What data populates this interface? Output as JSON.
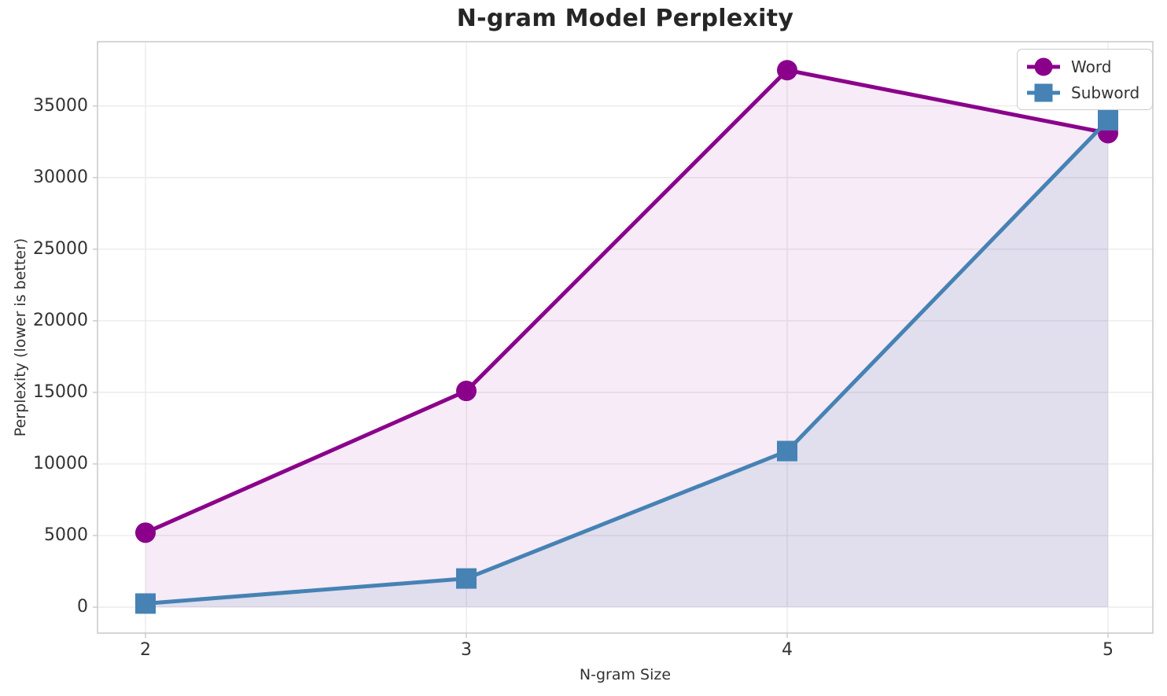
{
  "chart_data": {
    "type": "line",
    "title": "N-gram Model Perplexity",
    "xlabel": "N-gram Size",
    "ylabel": "Perplexity (lower is better)",
    "x": [
      2,
      3,
      4,
      5
    ],
    "xtick_labels": [
      "2",
      "3",
      "4",
      "5"
    ],
    "yticks": [
      0,
      5000,
      10000,
      15000,
      20000,
      25000,
      30000,
      35000
    ],
    "ytick_labels": [
      "0",
      "5000",
      "10000",
      "15000",
      "20000",
      "25000",
      "30000",
      "35000"
    ],
    "xlim": [
      1.85,
      5.15
    ],
    "ylim": [
      -1800,
      39500
    ],
    "grid": true,
    "legend_position": "upper right",
    "series": [
      {
        "name": "Word",
        "marker": "circle",
        "color": "#8B008B",
        "fill_alpha": 0.08,
        "values": [
          5200,
          15100,
          37500,
          33100
        ]
      },
      {
        "name": "Subword",
        "marker": "square",
        "color": "#4682B4",
        "fill_alpha": 0.12,
        "values": [
          250,
          2000,
          10900,
          34000
        ]
      }
    ],
    "style": {
      "grid_color": "#EBEBEB",
      "spine_color": "#CCCCCC",
      "tick_color": "#CCCCCC",
      "text_color": "#333333",
      "title_color": "#262626",
      "line_width": 5
    }
  }
}
